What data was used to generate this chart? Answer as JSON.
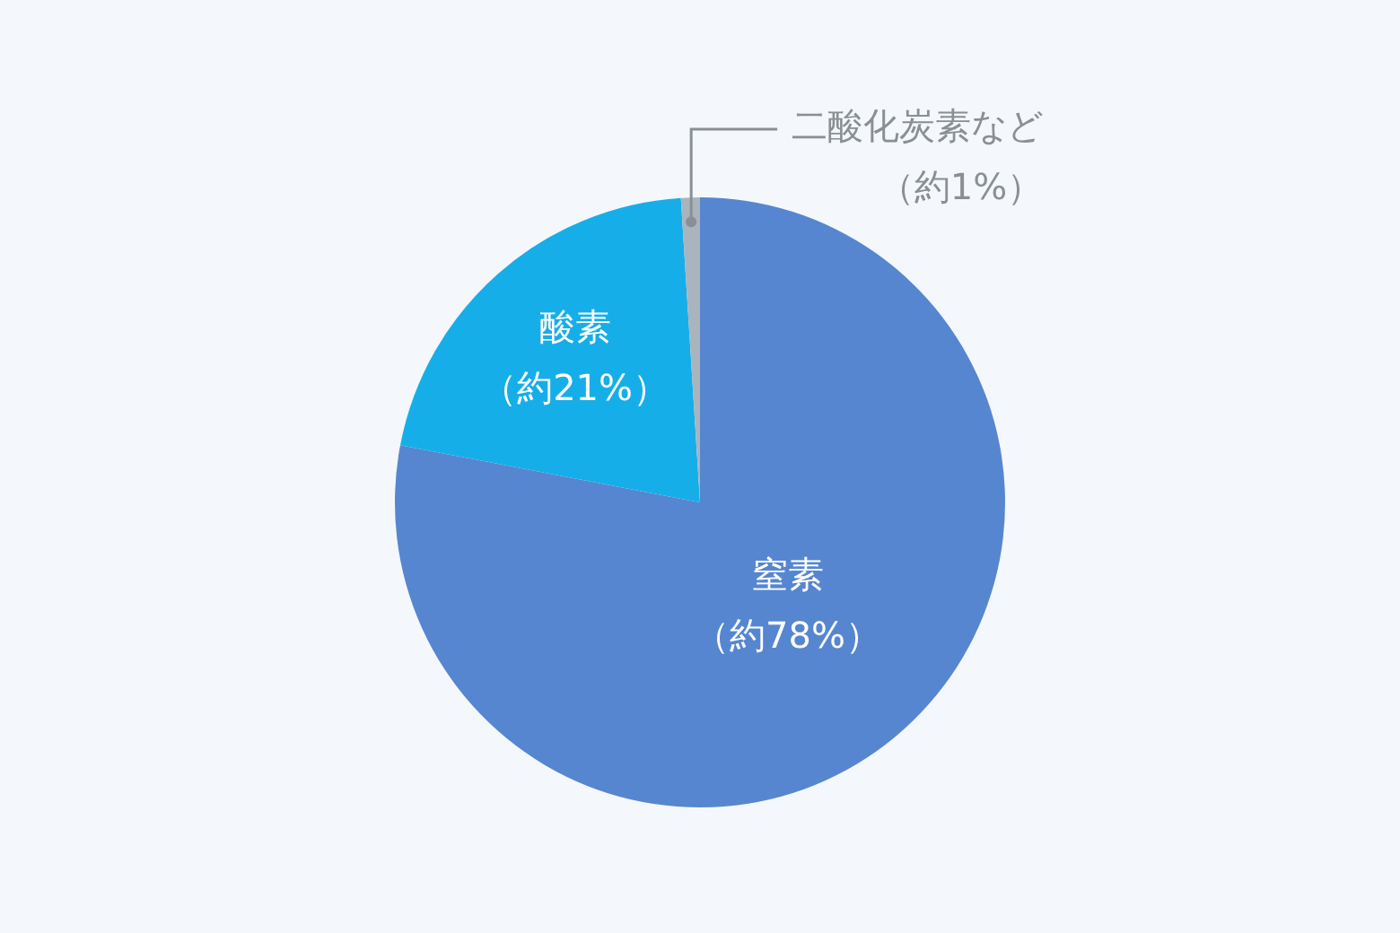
{
  "chart_data": {
    "type": "pie",
    "categories": [
      "窒素",
      "酸素",
      "二酸化炭素など"
    ],
    "values": [
      78,
      21,
      1
    ],
    "colors": [
      "#5686d0",
      "#16aee8",
      "#a9b4bd"
    ],
    "value_labels": [
      "（約78%）",
      "（約21%）",
      "（約1%）"
    ],
    "legend": false
  }
}
